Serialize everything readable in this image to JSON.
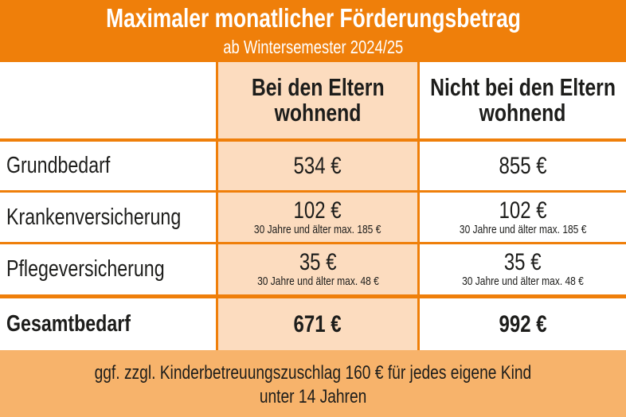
{
  "header": {
    "title": "Maximaler monatlicher Förderungsbetrag",
    "subtitle": "ab Wintersemester 2024/25"
  },
  "columns": [
    "Bei den Eltern wohnend",
    "Nicht bei den Eltern wohnend"
  ],
  "columns_lines": [
    [
      "Bei den Eltern",
      "wohnend"
    ],
    [
      "Nicht bei den Eltern",
      "wohnend"
    ]
  ],
  "rows": [
    {
      "label": "Grundbedarf",
      "values": [
        "534 €",
        "855 €"
      ],
      "notes": [
        "",
        ""
      ]
    },
    {
      "label": "Krankenversicherung",
      "values": [
        "102 €",
        "102 €"
      ],
      "notes": [
        "30 Jahre und älter max. 185 €",
        "30 Jahre und älter max. 185 €"
      ]
    },
    {
      "label": "Pflegeversicherung",
      "values": [
        "35 €",
        "35 €"
      ],
      "notes": [
        "30 Jahre und älter max. 48 €",
        "30 Jahre und älter max. 48 €"
      ]
    },
    {
      "label": "Gesamtbedarf",
      "values": [
        "671 €",
        "992 €"
      ],
      "notes": [
        "",
        ""
      ]
    }
  ],
  "footer": {
    "line1": "ggf. zzgl. Kinderbetreuungszuschlag 160 € für jedes eigene Kind",
    "line2": "unter 14 Jahren"
  },
  "colors": {
    "orange": "#ef7f0a",
    "highlight": "#fcdcbf",
    "footer": "#f7b36b"
  }
}
